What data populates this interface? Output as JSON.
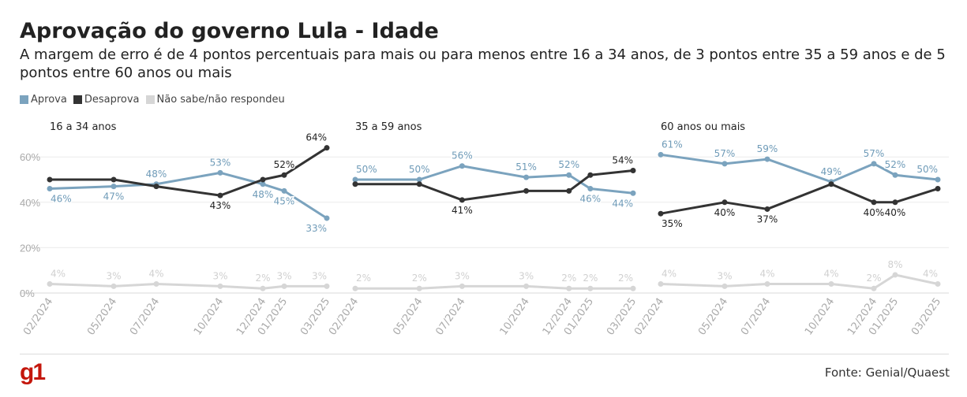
{
  "title": "Aprovação do governo Lula - Idade",
  "subtitle": "A margem de erro é de 4 pontos percentuais para mais ou para menos entre 16 a 34 anos, de 3 pontos entre 35 a 59 anos e de 5 pontos entre 60 anos ou mais",
  "legend": [
    {
      "label": "Aprova",
      "color": "#7ba3be"
    },
    {
      "label": "Desaprova",
      "color": "#333333"
    },
    {
      "label": "Não sabe/não respondeu",
      "color": "#d6d6d6"
    }
  ],
  "source": "Fonte: Genial/Quaest",
  "logo_text": "g1",
  "chart_data": {
    "type": "line",
    "x_labels": [
      "02/2024",
      "05/2024",
      "07/2024",
      "10/2024",
      "12/2024",
      "01/2025",
      "03/2025"
    ],
    "x_months": [
      0,
      3,
      5,
      8,
      10,
      11,
      13
    ],
    "y_ticks": [
      "0%",
      "20%",
      "40%",
      "60%"
    ],
    "ylim": [
      0,
      65
    ],
    "panels": [
      {
        "title": "16 a 34 anos",
        "series": [
          {
            "name": "Aprova",
            "values": [
              46,
              47,
              48,
              53,
              48,
              45,
              33
            ],
            "labels": [
              "46%",
              "47%",
              "48%",
              "53%",
              "48%",
              "45%",
              "33%"
            ]
          },
          {
            "name": "Desaprova",
            "values": [
              50,
              50,
              47,
              43,
              50,
              52,
              64
            ],
            "labels": [
              "",
              "",
              "",
              "43%",
              "",
              "52%",
              "64%"
            ]
          },
          {
            "name": "Não sabe/não respondeu",
            "values": [
              4,
              3,
              4,
              3,
              2,
              3,
              3
            ],
            "labels": [
              "4%",
              "3%",
              "4%",
              "3%",
              "2%",
              "3%",
              "3%"
            ]
          }
        ]
      },
      {
        "title": "35 a 59 anos",
        "series": [
          {
            "name": "Aprova",
            "values": [
              50,
              50,
              56,
              51,
              52,
              46,
              44
            ],
            "labels": [
              "50%",
              "50%",
              "56%",
              "51%",
              "52%",
              "46%",
              "44%"
            ]
          },
          {
            "name": "Desaprova",
            "values": [
              48,
              48,
              41,
              45,
              45,
              52,
              54
            ],
            "labels": [
              "",
              "",
              "41%",
              "",
              "",
              "",
              "54%"
            ]
          },
          {
            "name": "Não sabe/não respondeu",
            "values": [
              2,
              2,
              3,
              3,
              2,
              2,
              2
            ],
            "labels": [
              "2%",
              "2%",
              "3%",
              "3%",
              "2%",
              "2%",
              "2%"
            ]
          }
        ]
      },
      {
        "title": "60 anos ou mais",
        "series": [
          {
            "name": "Aprova",
            "values": [
              61,
              57,
              59,
              49,
              57,
              52,
              50
            ],
            "labels": [
              "61%",
              "57%",
              "59%",
              "49%",
              "57%",
              "52%",
              "50%"
            ]
          },
          {
            "name": "Desaprova",
            "values": [
              35,
              40,
              37,
              48,
              40,
              40,
              46
            ],
            "labels": [
              "35%",
              "40%",
              "37%",
              "",
              "40%",
              "40%",
              ""
            ]
          },
          {
            "name": "Não sabe/não respondeu",
            "values": [
              4,
              3,
              4,
              4,
              2,
              8,
              4
            ],
            "labels": [
              "4%",
              "3%",
              "4%",
              "4%",
              "2%",
              "8%",
              "4%"
            ]
          }
        ]
      }
    ]
  }
}
